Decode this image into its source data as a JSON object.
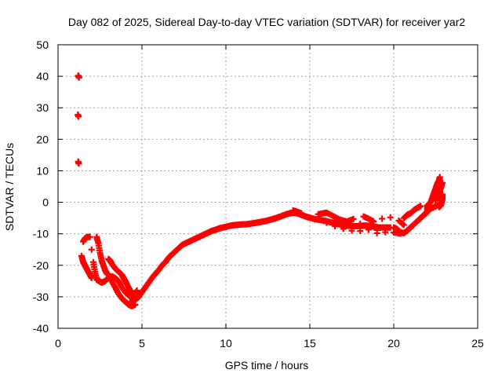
{
  "chart_data": {
    "type": "scatter",
    "title": "Day 082 of 2025, Sidereal Day-to-day VTEC variation (SDTVAR) for receiver yar2",
    "xlabel": "GPS time / hours",
    "ylabel": "SDTVAR / TECUs",
    "xlim": [
      0,
      25
    ],
    "ylim": [
      -40,
      50
    ],
    "xticks": [
      0,
      5,
      10,
      15,
      20,
      25
    ],
    "yticks": [
      -40,
      -30,
      -20,
      -10,
      0,
      10,
      20,
      30,
      40,
      50
    ],
    "grid": true,
    "marker": "+",
    "series": [
      {
        "name": "SDTVAR",
        "color": "#ff0000",
        "points": [
          [
            1.2,
            40.2
          ],
          [
            1.25,
            39.6
          ],
          [
            1.18,
            27.8
          ],
          [
            1.22,
            27.2
          ],
          [
            1.2,
            12.9
          ],
          [
            1.24,
            12.3
          ],
          [
            1.4,
            -17
          ],
          [
            1.5,
            -19
          ],
          [
            1.6,
            -20
          ],
          [
            1.7,
            -21
          ],
          [
            1.8,
            -22
          ],
          [
            1.9,
            -23
          ],
          [
            2.0,
            -24
          ],
          [
            1.5,
            -12.5
          ],
          [
            1.6,
            -11.5
          ],
          [
            1.75,
            -11
          ],
          [
            1.9,
            -11
          ],
          [
            2.0,
            -15
          ],
          [
            2.1,
            -19
          ],
          [
            2.2,
            -22
          ],
          [
            2.3,
            -24.5
          ],
          [
            2.45,
            -25
          ],
          [
            2.6,
            -25.5
          ],
          [
            2.8,
            -25
          ],
          [
            3.0,
            -24
          ],
          [
            3.2,
            -23.5
          ],
          [
            3.4,
            -24
          ],
          [
            3.6,
            -25
          ],
          [
            3.8,
            -27
          ],
          [
            4.0,
            -28.5
          ],
          [
            4.2,
            -29.5
          ],
          [
            4.4,
            -30
          ],
          [
            4.6,
            -29
          ],
          [
            4.7,
            -28
          ],
          [
            2.3,
            -11
          ],
          [
            2.4,
            -13
          ],
          [
            2.5,
            -16
          ],
          [
            2.6,
            -18.5
          ],
          [
            2.7,
            -20
          ],
          [
            2.8,
            -21.5
          ],
          [
            2.9,
            -22.5
          ],
          [
            3.0,
            -23
          ],
          [
            3.2,
            -25
          ],
          [
            3.4,
            -27
          ],
          [
            3.6,
            -29
          ],
          [
            3.8,
            -30.5
          ],
          [
            4.0,
            -31.5
          ],
          [
            4.2,
            -32.5
          ],
          [
            4.4,
            -33
          ],
          [
            4.6,
            -32.5
          ],
          [
            3.0,
            -18
          ],
          [
            3.1,
            -18.5
          ],
          [
            3.2,
            -19.5
          ],
          [
            3.4,
            -21
          ],
          [
            3.6,
            -22
          ],
          [
            3.8,
            -23
          ],
          [
            3.9,
            -24
          ],
          [
            4.0,
            -25
          ],
          [
            4.1,
            -26
          ],
          [
            4.3,
            -28
          ],
          [
            4.5,
            -29.5
          ],
          [
            4.4,
            -31.5
          ],
          [
            4.6,
            -31
          ],
          [
            4.8,
            -30
          ],
          [
            5.0,
            -28.5
          ],
          [
            5.2,
            -27
          ],
          [
            5.4,
            -25.5
          ],
          [
            5.6,
            -24
          ],
          [
            5.8,
            -22.7
          ],
          [
            6.0,
            -21.5
          ],
          [
            6.2,
            -20
          ],
          [
            6.4,
            -19
          ],
          [
            6.6,
            -17.5
          ],
          [
            6.8,
            -16.5
          ],
          [
            7.0,
            -15.5
          ],
          [
            7.2,
            -14.5
          ],
          [
            7.4,
            -13.5
          ],
          [
            7.6,
            -13
          ],
          [
            7.8,
            -12.5
          ],
          [
            8.0,
            -12
          ],
          [
            8.2,
            -11.5
          ],
          [
            8.4,
            -11
          ],
          [
            8.6,
            -10.5
          ],
          [
            8.8,
            -10
          ],
          [
            9.0,
            -9.5
          ],
          [
            9.2,
            -9
          ],
          [
            9.4,
            -8.7
          ],
          [
            9.6,
            -8.3
          ],
          [
            9.8,
            -8
          ],
          [
            10.0,
            -7.8
          ],
          [
            10.2,
            -7.5
          ],
          [
            10.4,
            -7.3
          ],
          [
            10.6,
            -7.2
          ],
          [
            10.8,
            -7.1
          ],
          [
            11.0,
            -7
          ],
          [
            11.2,
            -7
          ],
          [
            11.4,
            -6.8
          ],
          [
            11.6,
            -6.7
          ],
          [
            11.8,
            -6.5
          ],
          [
            12.0,
            -6.3
          ],
          [
            12.2,
            -6.1
          ],
          [
            12.4,
            -5.9
          ],
          [
            12.6,
            -5.6
          ],
          [
            12.8,
            -5.3
          ],
          [
            13.0,
            -5
          ],
          [
            13.2,
            -4.6
          ],
          [
            13.4,
            -4.2
          ],
          [
            13.6,
            -3.8
          ],
          [
            13.8,
            -3.5
          ],
          [
            14.0,
            -3.3
          ],
          [
            14.2,
            -3.4
          ],
          [
            14.4,
            -3.8
          ],
          [
            14.6,
            -4.2
          ],
          [
            14.8,
            -4.6
          ],
          [
            15.0,
            -4.9
          ],
          [
            15.2,
            -5.2
          ],
          [
            15.4,
            -5.4
          ],
          [
            15.6,
            -5.6
          ],
          [
            15.8,
            -5.8
          ],
          [
            16.0,
            -6
          ],
          [
            16.2,
            -6.3
          ],
          [
            16.4,
            -6.5
          ],
          [
            16.6,
            -6.8
          ],
          [
            16.8,
            -7
          ],
          [
            17.0,
            -7.2
          ],
          [
            17.2,
            -7.4
          ],
          [
            17.4,
            -7.5
          ],
          [
            17.6,
            -7.6
          ],
          [
            17.8,
            -7.6
          ],
          [
            18.0,
            -7.5
          ],
          [
            18.2,
            -7.4
          ],
          [
            18.4,
            -7.4
          ],
          [
            18.6,
            -7.5
          ],
          [
            18.8,
            -7.7
          ],
          [
            19.0,
            -7.9
          ],
          [
            19.2,
            -8
          ],
          [
            19.4,
            -8
          ],
          [
            19.6,
            -8
          ],
          [
            19.8,
            -8
          ],
          [
            14.0,
            -2.6
          ],
          [
            14.2,
            -2.9
          ],
          [
            14.5,
            -3.5
          ],
          [
            15.5,
            -3.8
          ],
          [
            15.8,
            -3.5
          ],
          [
            16.0,
            -3.3
          ],
          [
            16.4,
            -4.4
          ],
          [
            16.8,
            -5.5
          ],
          [
            17.2,
            -6.1
          ],
          [
            17.6,
            -5.3
          ],
          [
            18.2,
            -4.5
          ],
          [
            18.5,
            -5.2
          ],
          [
            18.8,
            -6.1
          ],
          [
            19.3,
            -5.2
          ],
          [
            19.8,
            -4.8
          ],
          [
            20.3,
            -5.8
          ],
          [
            20.6,
            -7.2
          ],
          [
            15.5,
            -5.4
          ],
          [
            16.0,
            -6.5
          ],
          [
            16.5,
            -7.6
          ],
          [
            17.0,
            -8.4
          ],
          [
            17.5,
            -9.0
          ],
          [
            18.0,
            -9.1
          ],
          [
            18.5,
            -8.7
          ],
          [
            19.0,
            -9.8
          ],
          [
            19.5,
            -9.5
          ],
          [
            20.0,
            -9.6
          ],
          [
            20.4,
            -9.9
          ],
          [
            18.0,
            -6.8
          ],
          [
            18.5,
            -8.4
          ],
          [
            19.0,
            -8.8
          ],
          [
            19.5,
            -8.3
          ],
          [
            20.0,
            -8
          ],
          [
            20.2,
            -8.5
          ],
          [
            20.4,
            -9.5
          ],
          [
            20.6,
            -9.8
          ],
          [
            20.8,
            -9
          ],
          [
            21.0,
            -8
          ],
          [
            21.2,
            -7
          ],
          [
            21.4,
            -6
          ],
          [
            21.6,
            -5
          ],
          [
            21.8,
            -4
          ],
          [
            22.0,
            -3
          ],
          [
            22.2,
            -2
          ],
          [
            22.4,
            -1.5
          ],
          [
            22.6,
            -1
          ],
          [
            22.8,
            -0.5
          ],
          [
            20.6,
            -5
          ],
          [
            20.8,
            -4
          ],
          [
            21.0,
            -3.5
          ],
          [
            21.2,
            -2.5
          ],
          [
            21.4,
            -1.8
          ],
          [
            21.6,
            -1.2
          ],
          [
            21.5,
            -5.5
          ],
          [
            21.7,
            -4.5
          ],
          [
            21.9,
            -3.5
          ],
          [
            22.0,
            -2.8
          ],
          [
            22.0,
            -1
          ],
          [
            22.2,
            0
          ],
          [
            22.3,
            1.5
          ],
          [
            22.4,
            3
          ],
          [
            22.5,
            4.5
          ],
          [
            22.6,
            6
          ],
          [
            22.7,
            7
          ],
          [
            22.75,
            8
          ],
          [
            22.5,
            0.5
          ],
          [
            22.6,
            1.5
          ],
          [
            22.7,
            3
          ],
          [
            22.8,
            4.5
          ],
          [
            22.85,
            5.5
          ],
          [
            22.9,
            6.2
          ],
          [
            22.7,
            -1.5
          ],
          [
            22.8,
            -1
          ],
          [
            22.85,
            0
          ],
          [
            22.9,
            1
          ],
          [
            22.9,
            2.5
          ]
        ]
      }
    ]
  }
}
